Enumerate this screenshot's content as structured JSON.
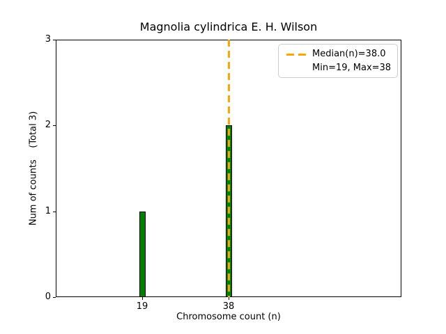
{
  "chart_data": {
    "type": "bar",
    "title": "Magnolia cylindrica E. H. Wilson",
    "xlabel": "Chromosome count (n)",
    "ylabel": "Num of counts    (Total 3)",
    "x": [
      19,
      38
    ],
    "values": [
      1,
      2
    ],
    "xticks": [
      "19",
      "38"
    ],
    "yticks": [
      "0",
      "1",
      "2",
      "3"
    ],
    "xlim": [
      0,
      76
    ],
    "ylim": [
      0,
      3
    ],
    "grid": false,
    "total_counts": 3,
    "bar_color": "#008000",
    "bar_edge_color": "#000000",
    "median_line": {
      "value": 38.0,
      "color": "#ffa500",
      "style": "dashed"
    },
    "stats": {
      "median": 38.0,
      "min": 19,
      "max": 38
    },
    "legend": {
      "position": "upper right",
      "entries": [
        {
          "icon": "orange-dashed-line-icon",
          "label_line1": "Median(n)=38.0",
          "label_line2": "Min=19, Max=38"
        }
      ]
    }
  }
}
